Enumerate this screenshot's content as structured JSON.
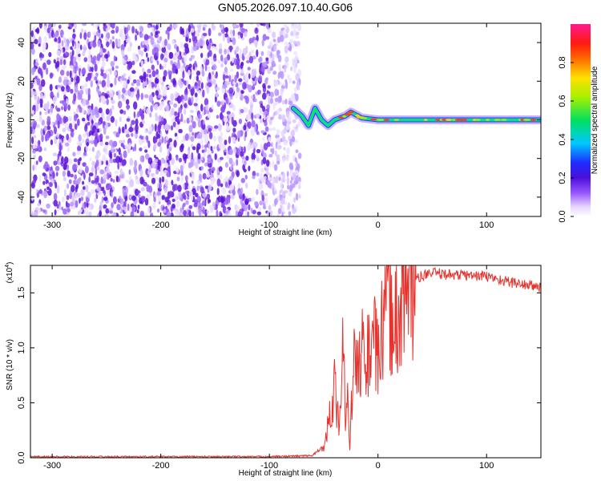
{
  "chart_data": [
    {
      "type": "heatmap",
      "title": "GN05.2026.097.10.40.G06",
      "xlabel": "Height of straight line (km)",
      "ylabel": "Frequency (Hz)",
      "xlim": [
        -320,
        150
      ],
      "ylim": [
        -50,
        50
      ],
      "xticks": [
        -300,
        -200,
        -100,
        0,
        100
      ],
      "yticks": [
        -40,
        -20,
        0,
        20,
        40
      ],
      "colorbar": {
        "label": "Normalized spectral amplitude",
        "range": [
          0,
          1
        ],
        "ticks": [
          "0.0",
          "0.2",
          "0.4",
          "0.6",
          "0.8"
        ],
        "colormap": "rainbow (violet-blue-cyan-green-yellow-red-magenta)"
      },
      "description_regions": {
        "noise_region_x": [
          -320,
          -72
        ],
        "noise_frequency_range": [
          -50,
          50
        ],
        "signal_track_x": [
          -80,
          150
        ],
        "signal_frequency_near_x": [
          {
            "x": -78,
            "f": 6
          },
          {
            "x": -70,
            "f": 2
          },
          {
            "x": -64,
            "f": -3
          },
          {
            "x": -58,
            "f": 6
          },
          {
            "x": -52,
            "f": 0
          },
          {
            "x": -46,
            "f": -3
          },
          {
            "x": -40,
            "f": 0
          },
          {
            "x": -30,
            "f": 2
          },
          {
            "x": -25,
            "f": 4
          },
          {
            "x": -15,
            "f": 1
          },
          {
            "x": 0,
            "f": 0
          },
          {
            "x": 50,
            "f": 0
          },
          {
            "x": 100,
            "f": 0
          },
          {
            "x": 150,
            "f": 0
          }
        ]
      },
      "grid": false,
      "legend": "colorbar-right"
    },
    {
      "type": "line",
      "title": "",
      "xlabel": "Height of straight line (km)",
      "ylabel": "SNR (10 * v/v)",
      "yscale_label": "(x10",
      "yscale_exp": "4",
      "xlim": [
        -320,
        150
      ],
      "ylim": [
        0,
        1.75
      ],
      "xticks": [
        -300,
        -200,
        -100,
        0,
        100
      ],
      "ytick_labels": [
        "0.0",
        "0.5",
        "1.0",
        "1.5"
      ],
      "yticks": [
        0,
        0.5,
        1.0,
        1.5
      ],
      "series": [
        {
          "color": "#e8322e",
          "x": [
            -320,
            -250,
            -200,
            -150,
            -100,
            -60,
            -50,
            -45,
            -40,
            -38,
            -36,
            -34,
            -32,
            -30,
            -28,
            -26,
            -24,
            -22,
            -20,
            -15,
            -10,
            -5,
            0,
            5,
            10,
            15,
            20,
            25,
            30,
            35,
            40,
            50,
            60,
            80,
            100,
            120,
            150
          ],
          "values": [
            0.01,
            0.01,
            0.01,
            0.01,
            0.01,
            0.02,
            0.1,
            0.35,
            0.65,
            0.45,
            0.35,
            0.6,
            1.1,
            0.2,
            0.55,
            0.05,
            0.6,
            0.85,
            0.75,
            1.0,
            0.9,
            1.1,
            0.9,
            1.2,
            1.3,
            1.25,
            1.35,
            1.45,
            1.55,
            1.62,
            1.65,
            1.68,
            1.67,
            1.66,
            1.65,
            1.6,
            1.55
          ]
        }
      ],
      "grid": false
    }
  ]
}
